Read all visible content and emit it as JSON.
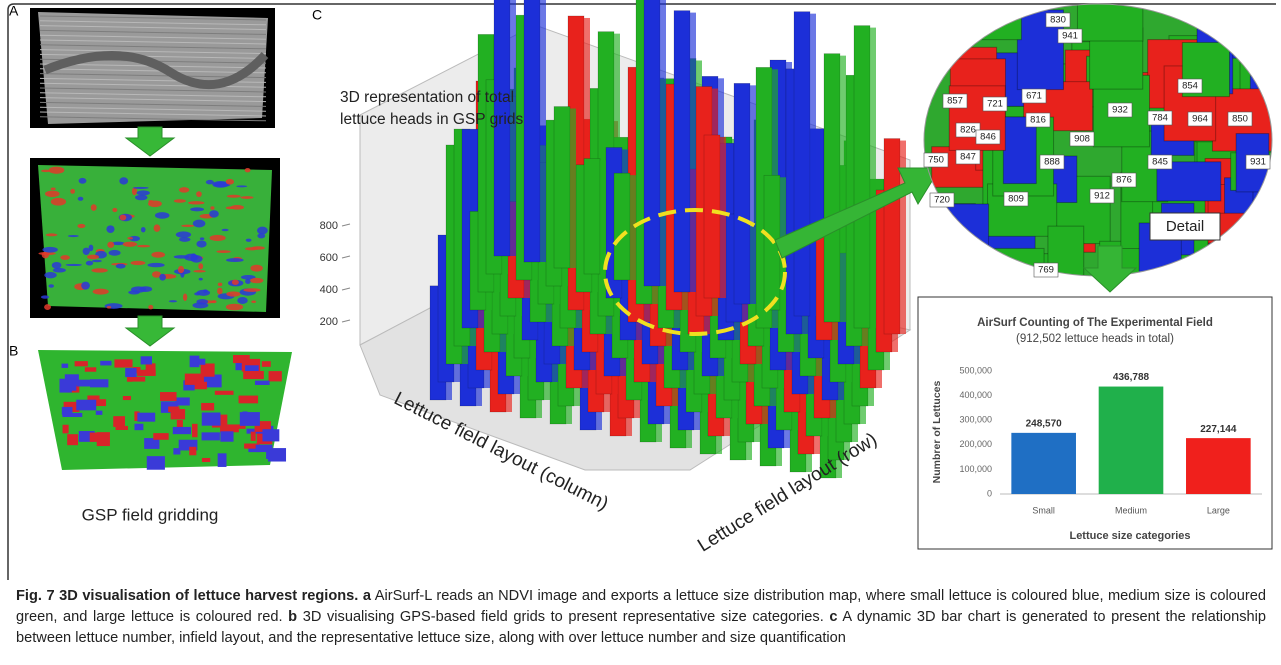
{
  "panel_labels": {
    "a": "A",
    "b": "B",
    "c": "C"
  },
  "panel_b_caption": "GSP field gridding",
  "panel_c": {
    "title_lines": [
      "3D representation of total",
      "lettuce heads in GSP grids"
    ],
    "zticks": [
      200,
      400,
      600,
      800
    ],
    "x_label": "Lettuce field layout (column)",
    "y_label": "Lettuce field layout (row)"
  },
  "detail": {
    "label": "Detail",
    "values": [
      830,
      941,
      854,
      857,
      721,
      671,
      826,
      816,
      932,
      784,
      964,
      850,
      846,
      908,
      750,
      847,
      888,
      845,
      931,
      876,
      720,
      809,
      912,
      769
    ]
  },
  "chart_data": {
    "type": "bar",
    "title": "AirSurf Counting of The Experimental Field",
    "subtitle": "(912,502 lettuce heads in total)",
    "y_label": "Numbrer of Lettuces",
    "x_label": "Lettuce size categories",
    "categories": [
      "Small",
      "Medium",
      "Large"
    ],
    "values": [
      248570,
      436788,
      227144
    ],
    "value_labels": [
      "248,570",
      "436,788",
      "227,144"
    ],
    "colors": [
      "#1f6fc4",
      "#20b04b",
      "#f0201c"
    ],
    "ylim": [
      0,
      500000
    ],
    "yticks": [
      0,
      {
        "value": 100000,
        "label": "100,000"
      },
      {
        "value": 200000,
        "label": "200,000"
      },
      {
        "value": 300000,
        "label": "300,000"
      },
      {
        "value": 400000,
        "label": "400,000"
      },
      {
        "value": 500000,
        "label": "500,000"
      }
    ],
    "grid": false
  },
  "caption": {
    "title": "Fig. 7 3D visualisation of lettuce harvest regions.",
    "a_label": "a",
    "a_text": "AirSurf-L reads an NDVI image and exports a lettuce size distribution map, where small lettuce is coloured blue, medium size is coloured green, and large lettuce is coloured red.",
    "b_label": "b",
    "b_text": "3D visualising GPS-based field grids to present representative size categories.",
    "c_label": "c",
    "c_text": "A dynamic 3D bar chart is generated to present the relationship between lettuce number, infield layout, and the representative lettuce size, along with over lettuce number and size quantification"
  }
}
